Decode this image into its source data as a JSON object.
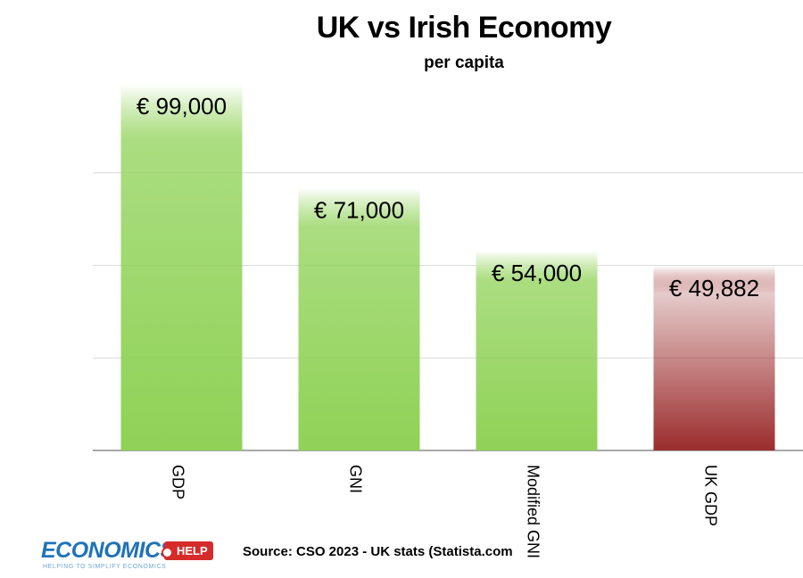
{
  "chart_data": {
    "type": "bar",
    "title": "UK vs Irish Economy",
    "subtitle": "per capita",
    "categories": [
      "GDP",
      "GNI",
      "Modified GNI",
      "UK GDP"
    ],
    "values": [
      99000,
      71000,
      54000,
      49882
    ],
    "data_labels": [
      "€ 99,000",
      "€ 71,000",
      "€ 54,000",
      "€ 49,882"
    ],
    "ylim": [
      0,
      100000
    ],
    "grid": true,
    "legend": "none",
    "colors": [
      "#8fd256",
      "#8fd256",
      "#8fd256",
      "#9b2c2c"
    ],
    "category_label_orientation": "vertical"
  },
  "footer": {
    "source": "Source: CSO 2023 - UK stats (Statista.com",
    "logo_word": "ECONOMICS",
    "logo_badge": "HELP",
    "logo_tagline": "HELPING TO SIMPLIFY ECONOMICS"
  }
}
